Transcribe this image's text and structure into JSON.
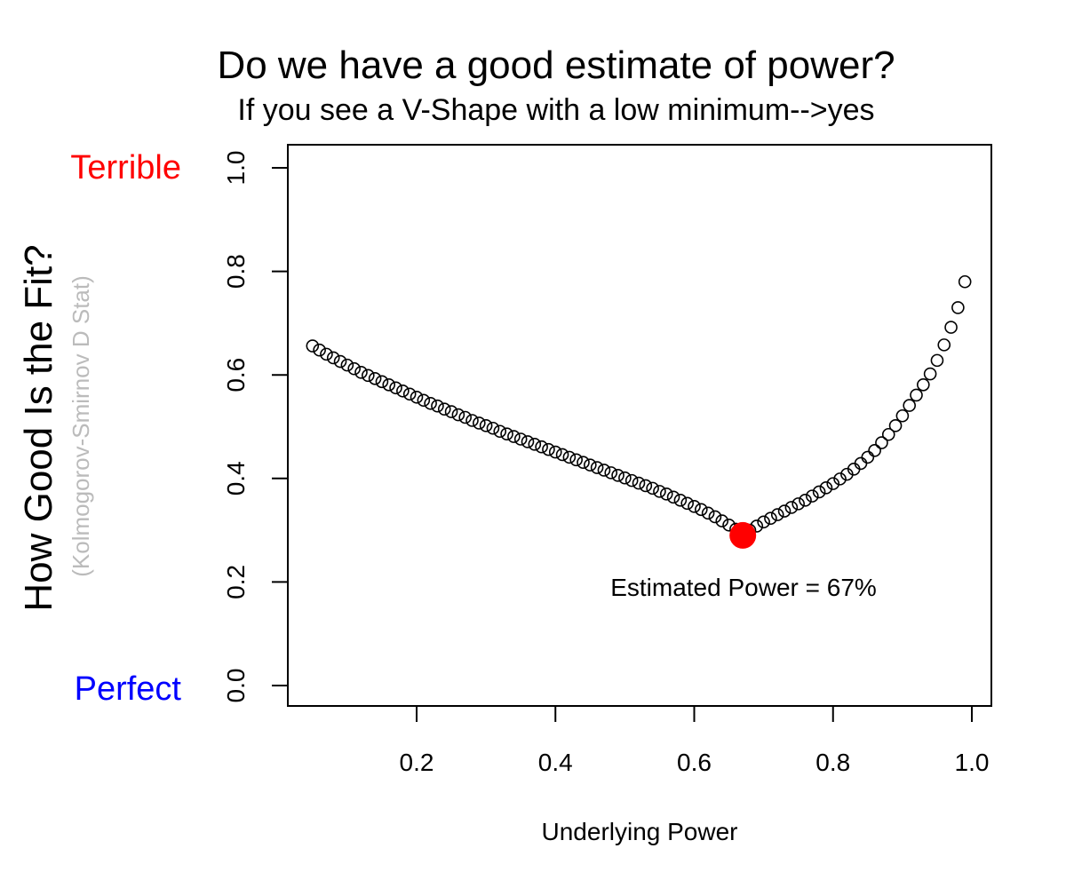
{
  "chart_data": {
    "type": "scatter",
    "title": "Do we have a good estimate of power?",
    "subtitle": "If you see a V-Shape with a low minimum-->yes",
    "xlabel": "Underlying Power",
    "ylabel": "How Good Is the Fit?",
    "ylabel_secondary": "(Kolmogorov-Smirnov D Stat)",
    "top_label": "Terrible",
    "bottom_label": "Perfect",
    "annotation": "Estimated Power = 67%",
    "xlim": [
      0.05,
      0.99
    ],
    "ylim": [
      0.0,
      1.0
    ],
    "xticks": [
      0.2,
      0.4,
      0.6,
      0.8,
      1.0
    ],
    "xtick_labels": [
      "0.2",
      "0.4",
      "0.6",
      "0.8",
      "1.0"
    ],
    "yticks": [
      0.0,
      0.2,
      0.4,
      0.6,
      0.8,
      1.0
    ],
    "ytick_labels": [
      "0.0",
      "0.2",
      "0.4",
      "0.6",
      "0.8",
      "1.0"
    ],
    "grid": false,
    "estimate": {
      "x": 0.67,
      "y": 0.29
    },
    "x": [
      0.05,
      0.06,
      0.07,
      0.08,
      0.09,
      0.1,
      0.11,
      0.12,
      0.13,
      0.14,
      0.15,
      0.16,
      0.17,
      0.18,
      0.19,
      0.2,
      0.21,
      0.22,
      0.23,
      0.24,
      0.25,
      0.26,
      0.27,
      0.28,
      0.29,
      0.3,
      0.31,
      0.32,
      0.33,
      0.34,
      0.35,
      0.36,
      0.37,
      0.38,
      0.39,
      0.4,
      0.41,
      0.42,
      0.43,
      0.44,
      0.45,
      0.46,
      0.47,
      0.48,
      0.49,
      0.5,
      0.51,
      0.52,
      0.53,
      0.54,
      0.55,
      0.56,
      0.57,
      0.58,
      0.59,
      0.6,
      0.61,
      0.62,
      0.63,
      0.64,
      0.65,
      0.66,
      0.67,
      0.68,
      0.69,
      0.7,
      0.71,
      0.72,
      0.73,
      0.74,
      0.75,
      0.76,
      0.77,
      0.78,
      0.79,
      0.8,
      0.81,
      0.82,
      0.83,
      0.84,
      0.85,
      0.86,
      0.87,
      0.88,
      0.89,
      0.9,
      0.91,
      0.92,
      0.93,
      0.94,
      0.95,
      0.96,
      0.97,
      0.98,
      0.99
    ],
    "y": [
      0.656,
      0.648,
      0.64,
      0.633,
      0.626,
      0.619,
      0.612,
      0.605,
      0.599,
      0.593,
      0.587,
      0.581,
      0.575,
      0.569,
      0.563,
      0.557,
      0.551,
      0.545,
      0.54,
      0.534,
      0.529,
      0.523,
      0.518,
      0.512,
      0.507,
      0.502,
      0.497,
      0.491,
      0.486,
      0.481,
      0.476,
      0.471,
      0.466,
      0.461,
      0.456,
      0.451,
      0.446,
      0.441,
      0.436,
      0.431,
      0.426,
      0.421,
      0.416,
      0.411,
      0.406,
      0.401,
      0.396,
      0.391,
      0.386,
      0.381,
      0.375,
      0.37,
      0.364,
      0.358,
      0.352,
      0.346,
      0.34,
      0.333,
      0.326,
      0.318,
      0.31,
      0.302,
      0.294,
      0.3,
      0.308,
      0.316,
      0.323,
      0.33,
      0.337,
      0.344,
      0.351,
      0.358,
      0.366,
      0.374,
      0.382,
      0.39,
      0.399,
      0.408,
      0.418,
      0.429,
      0.441,
      0.454,
      0.469,
      0.485,
      0.502,
      0.521,
      0.541,
      0.561,
      0.581,
      0.602,
      0.628,
      0.658,
      0.692,
      0.73,
      0.78
    ]
  }
}
